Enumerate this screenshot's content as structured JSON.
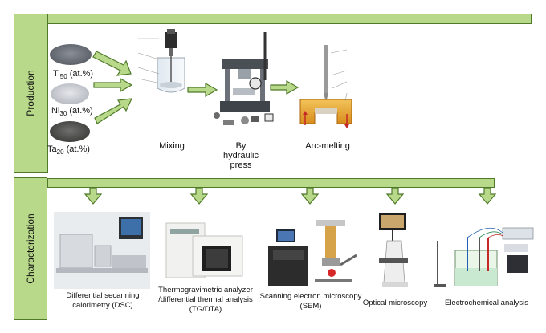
{
  "production": {
    "side_label": "Production",
    "elements": [
      {
        "symbol": "Ti",
        "sub": "50",
        "unit": " (at.%)"
      },
      {
        "symbol": "Ni",
        "sub": "30",
        "unit": " (at.%)"
      },
      {
        "symbol": "Ta",
        "sub": "20",
        "unit": " (at.%)"
      }
    ],
    "steps": [
      {
        "label": "Mixing"
      },
      {
        "label": "By\nhydraulic\npress"
      },
      {
        "label": "Arc-melting"
      }
    ]
  },
  "characterization": {
    "side_label": "Characterization",
    "methods": [
      {
        "label": "Differential secanning\ncalorimetry (DSC)"
      },
      {
        "label": "Thermogravimetric analyzer\n/differential thermal analysis\n(TG/DTA)"
      },
      {
        "label": "Scanning electron microscopy\n(SEM)"
      },
      {
        "label": "Optical microscopy"
      },
      {
        "label": "Electrochemical analysis"
      }
    ]
  },
  "colors": {
    "green_fill": "#b8d98a",
    "green_stroke": "#4f7a2a"
  }
}
